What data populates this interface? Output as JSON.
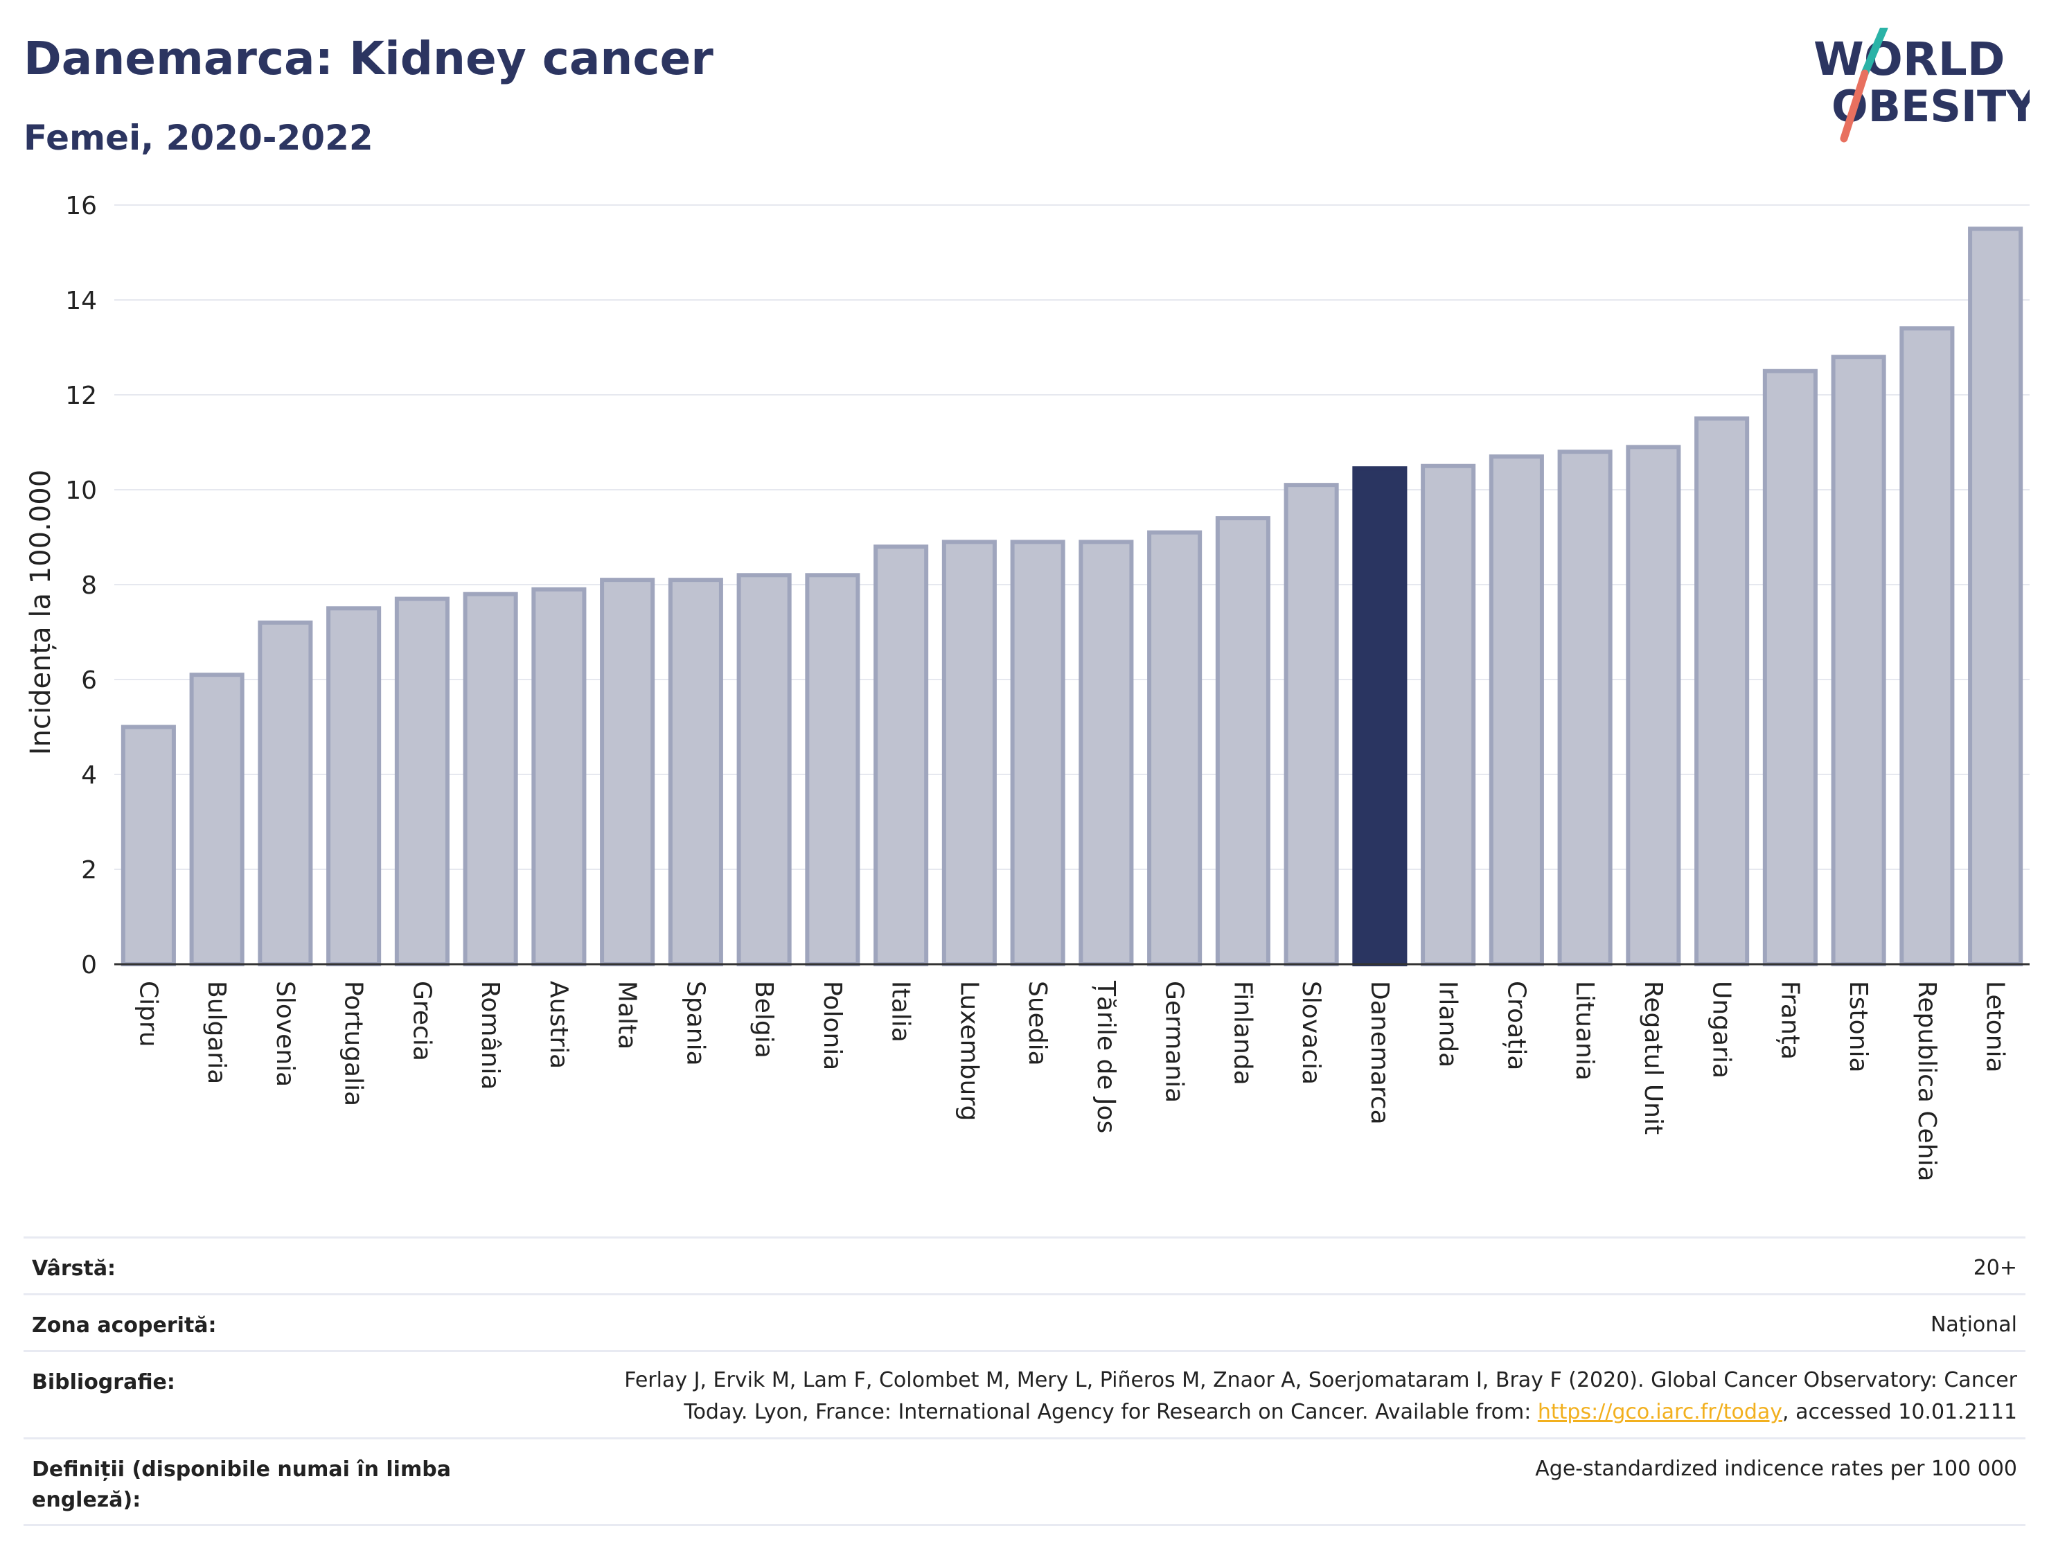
{
  "header": {
    "title": "Danemarca: Kidney cancer",
    "subtitle": "Femei, 2020-2022"
  },
  "logo": {
    "line1": "WORLD",
    "line2": "OBESITY"
  },
  "chart_data": {
    "type": "bar",
    "title": "Danemarca: Kidney cancer",
    "subtitle": "Femei, 2020-2022",
    "ylabel": "Incidența la 100.000",
    "xlabel": "",
    "ylim": [
      0,
      16
    ],
    "yticks": [
      0,
      2,
      4,
      6,
      8,
      10,
      12,
      14,
      16
    ],
    "grid": true,
    "highlight": "Danemarca",
    "colors": {
      "bar": "#bfc2d0",
      "bar_edge": "#9fa5bd",
      "highlight": "#2a3561"
    },
    "categories": [
      "Cipru",
      "Bulgaria",
      "Slovenia",
      "Portugalia",
      "Grecia",
      "România",
      "Austria",
      "Malta",
      "Spania",
      "Belgia",
      "Polonia",
      "Italia",
      "Luxemburg",
      "Suedia",
      "Țările de Jos",
      "Germania",
      "Finlanda",
      "Slovacia",
      "Danemarca",
      "Irlanda",
      "Croația",
      "Lituania",
      "Regatul Unit",
      "Ungaria",
      "Franța",
      "Estonia",
      "Republica Cehia",
      "Letonia"
    ],
    "values": [
      5.0,
      6.1,
      7.2,
      7.5,
      7.7,
      7.8,
      7.9,
      8.1,
      8.1,
      8.2,
      8.2,
      8.8,
      8.9,
      8.9,
      8.9,
      9.1,
      9.4,
      10.1,
      10.45,
      10.5,
      10.7,
      10.8,
      10.9,
      11.5,
      12.5,
      12.8,
      13.4,
      15.5
    ]
  },
  "info": {
    "age_label": "Vârstă:",
    "age_value": "20+",
    "area_label": "Zona acoperită:",
    "area_value": "Național",
    "biblio_label": "Bibliografie:",
    "biblio_line1": "Ferlay J, Ervik M, Lam F, Colombet M, Mery L, Piñeros M, Znaor A, Soerjomataram I, Bray F (2020). Global Cancer Observatory: Cancer",
    "biblio_line2_pre": "Today. Lyon, France: International Agency for Research on Cancer. Available from: ",
    "biblio_link": "https://gco.iarc.fr/today",
    "biblio_line2_post": ", accessed 10.01.2111",
    "def_label_line1": "Definiții (disponibile numai în limba",
    "def_label_line2": "engleză):",
    "def_value": "Age-standardized indicence rates per 100 000"
  }
}
